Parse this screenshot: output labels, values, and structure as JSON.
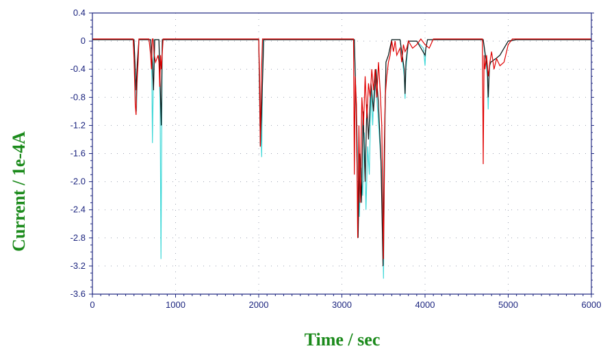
{
  "chart_data": {
    "type": "line",
    "title": "",
    "xlabel": "Time / sec",
    "ylabel": "Current / 1e-4A",
    "xlim": [
      0,
      6000
    ],
    "ylim": [
      -3.6,
      0.4
    ],
    "x_ticks": [
      "0",
      "1000",
      "2000",
      "3000",
      "4000",
      "5000",
      "6000"
    ],
    "y_ticks": [
      "0.4",
      "0",
      "-0.4",
      "-0.8",
      "-1.2",
      "-1.6",
      "-2.0",
      "-2.4",
      "-2.8",
      "-3.2",
      "-3.6"
    ],
    "grid": true,
    "grid_style": "dotted",
    "legend": "none",
    "series": [
      {
        "color": "#40d8d8",
        "x": [
          0,
          500,
          520,
          530,
          545,
          560,
          700,
          715,
          722,
          730,
          740,
          800,
          815,
          825,
          840,
          2000,
          2020,
          2035,
          2050,
          3150,
          3170,
          3190,
          3210,
          3230,
          3250,
          3270,
          3290,
          3310,
          3330,
          3350,
          3370,
          3390,
          3420,
          3450,
          3480,
          3500,
          3510,
          3530,
          3560,
          3600,
          3700,
          3750,
          3760,
          3770,
          3800,
          3900,
          3980,
          4000,
          4010,
          4030,
          4100,
          4700,
          4750,
          4760,
          4770,
          4790,
          4850,
          4900,
          5000,
          5100,
          6000
        ],
        "values": [
          0.02,
          0.02,
          -0.6,
          -1.0,
          -0.3,
          0.02,
          0.02,
          -0.5,
          -1.45,
          -0.8,
          0.02,
          0.02,
          -1.0,
          -3.1,
          0.02,
          0.02,
          -1.0,
          -1.65,
          0.02,
          0.02,
          -0.8,
          -1.6,
          -2.5,
          -1.8,
          -2.2,
          -1.3,
          -2.4,
          -1.5,
          -1.9,
          -0.7,
          -1.2,
          -0.5,
          -0.8,
          -1.35,
          -1.9,
          -3.38,
          -2.0,
          -0.3,
          -0.2,
          0.02,
          0.02,
          -0.5,
          -0.82,
          -0.4,
          0.0,
          0.0,
          -0.1,
          -0.35,
          -0.1,
          0.02,
          0.02,
          0.02,
          -0.5,
          -0.97,
          -0.4,
          -0.3,
          -0.25,
          -0.2,
          0.0,
          0.02,
          0.02
        ]
      },
      {
        "color": "#111111",
        "x": [
          0,
          500,
          525,
          540,
          560,
          700,
          720,
          735,
          750,
          800,
          815,
          828,
          840,
          2000,
          2020,
          2040,
          2060,
          3150,
          3170,
          3195,
          3215,
          3235,
          3255,
          3280,
          3300,
          3320,
          3350,
          3380,
          3410,
          3440,
          3470,
          3495,
          3510,
          3530,
          3560,
          3600,
          3700,
          3750,
          3760,
          3770,
          3800,
          3900,
          4000,
          4010,
          4030,
          4100,
          4700,
          4750,
          4760,
          4775,
          4790,
          4850,
          4900,
          5000,
          5100,
          6000
        ],
        "values": [
          0.02,
          0.02,
          -0.7,
          -0.3,
          0.02,
          0.02,
          -0.3,
          -0.7,
          0.02,
          0.02,
          -0.6,
          -1.2,
          0.02,
          0.02,
          -1.5,
          -0.8,
          0.02,
          0.02,
          -0.9,
          -2.8,
          -1.6,
          -2.3,
          -1.0,
          -2.0,
          -0.9,
          -1.4,
          -0.6,
          -1.0,
          -0.4,
          -0.9,
          -1.7,
          -3.2,
          -1.5,
          -0.3,
          -0.2,
          0.02,
          0.02,
          -0.4,
          -0.75,
          -0.3,
          0.0,
          0.0,
          -0.2,
          -0.1,
          0.02,
          0.02,
          0.02,
          -0.4,
          -0.8,
          -0.35,
          -0.3,
          -0.25,
          -0.2,
          0.0,
          0.02,
          0.02
        ]
      },
      {
        "color": "#e00000",
        "x": [
          0,
          490,
          500,
          515,
          525,
          535,
          550,
          560,
          580,
          620,
          650,
          680,
          700,
          710,
          720,
          730,
          745,
          760,
          790,
          800,
          810,
          820,
          830,
          850,
          2000,
          2010,
          2020,
          2030,
          2045,
          2060,
          3140,
          3150,
          3160,
          3175,
          3190,
          3205,
          3220,
          3240,
          3260,
          3280,
          3300,
          3320,
          3340,
          3360,
          3380,
          3400,
          3420,
          3440,
          3460,
          3480,
          3500,
          3520,
          3540,
          3560,
          3580,
          3600,
          3620,
          3640,
          3660,
          3700,
          3720,
          3740,
          3760,
          3780,
          3800,
          3850,
          3900,
          3950,
          4000,
          4050,
          4100,
          4690,
          4700,
          4710,
          4720,
          4740,
          4760,
          4780,
          4800,
          4830,
          4860,
          4900,
          4950,
          4980,
          5000,
          5050,
          5100,
          6000
        ],
        "values": [
          0.03,
          0.03,
          -0.25,
          -0.9,
          -1.05,
          -0.6,
          -0.3,
          0.03,
          0.03,
          0.03,
          0.03,
          0.03,
          -0.2,
          -0.4,
          0.03,
          0.03,
          -0.2,
          -0.3,
          -0.2,
          -0.3,
          -0.65,
          -0.2,
          -0.4,
          0.03,
          0.03,
          -0.5,
          -1.5,
          -0.6,
          0.03,
          0.03,
          0.03,
          -1.9,
          -0.5,
          -0.9,
          -2.8,
          -1.2,
          -2.3,
          -0.8,
          -1.2,
          -0.5,
          -1.1,
          -0.6,
          -0.8,
          -0.4,
          -0.7,
          -0.4,
          -0.8,
          -0.3,
          -0.7,
          -1.2,
          -3.1,
          -0.8,
          -0.5,
          -0.3,
          -0.2,
          0.0,
          -0.15,
          0.0,
          -0.2,
          -0.1,
          -0.3,
          -0.05,
          -0.15,
          -0.1,
          0.0,
          -0.1,
          -0.05,
          0.03,
          -0.05,
          -0.1,
          0.03,
          0.03,
          -1.75,
          -0.2,
          -0.4,
          -0.2,
          -0.5,
          -0.3,
          -0.15,
          -0.4,
          -0.25,
          -0.35,
          -0.3,
          -0.15,
          -0.05,
          0.03,
          0.03,
          0.03
        ]
      }
    ]
  }
}
